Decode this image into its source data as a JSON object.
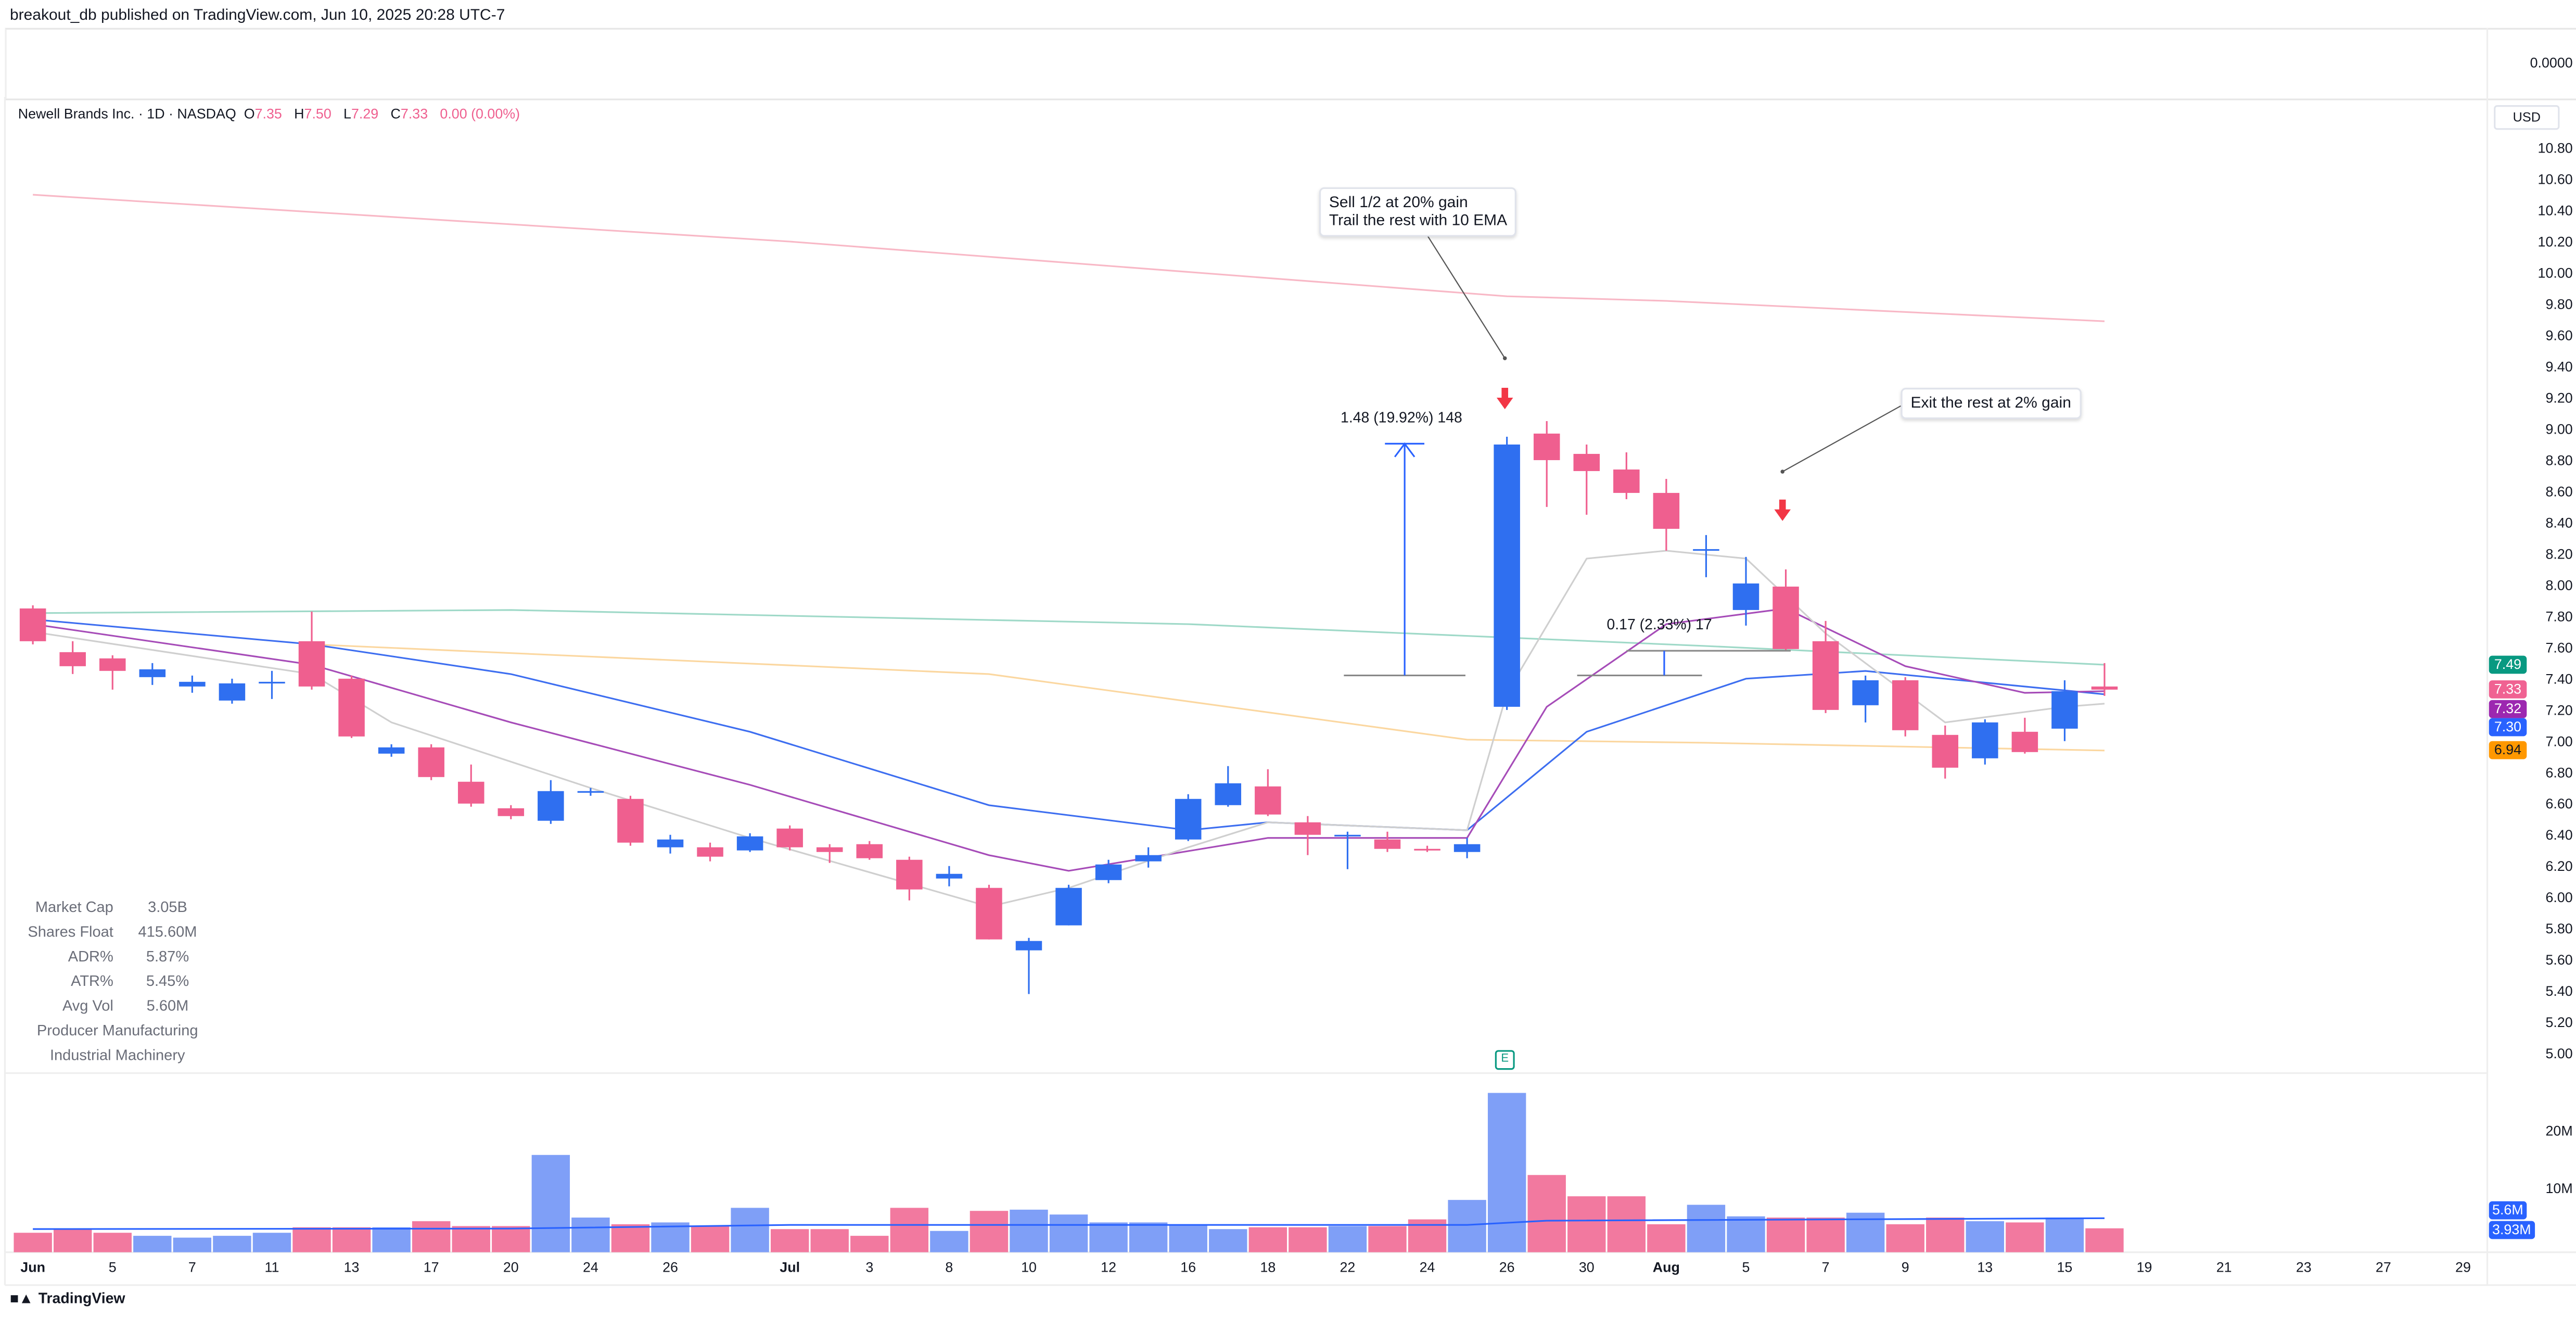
{
  "header": {
    "published": "breakout_db published on TradingView.com, Jun 10, 2025 20:28 UTC-7"
  },
  "top_pane": {
    "value": "0.0000"
  },
  "legend": {
    "symbol": "Newell Brands Inc. · 1D · NASDAQ",
    "o_label": "O",
    "o": "7.35",
    "h_label": "H",
    "h": "7.50",
    "l_label": "L",
    "l": "7.29",
    "c_label": "C",
    "c": "7.33",
    "change": "0.00 (0.00%)"
  },
  "currency": "USD",
  "stats": [
    {
      "label": "Market Cap",
      "value": "3.05B"
    },
    {
      "label": "Shares Float",
      "value": "415.60M"
    },
    {
      "label": "ADR%",
      "value": "5.87%"
    },
    {
      "label": "ATR%",
      "value": "5.45%"
    },
    {
      "label": "Avg Vol",
      "value": "5.60M"
    }
  ],
  "sector": "Producer Manufacturing",
  "industry": "Industrial Machinery",
  "annotations": {
    "note1_line1": "Sell 1/2 at 20% gain",
    "note1_line2": "Trail the rest with 10 EMA",
    "note2": "Exit the rest at 2% gain",
    "measure1": "1.48 (19.92%) 148",
    "measure2": "0.17 (2.33%) 17",
    "earnings": "E"
  },
  "branding": "TradingView",
  "colors": {
    "up": "#2f6ff0",
    "down": "#ef5f8f",
    "up_vol": "#7f9ff7",
    "down_vol": "#f2799f"
  },
  "chart_data": {
    "type": "candlestick",
    "price_axis": {
      "min": 5.0,
      "max": 10.8,
      "ticks": [
        "10.80",
        "10.60",
        "10.40",
        "10.20",
        "10.00",
        "9.80",
        "9.60",
        "9.40",
        "9.20",
        "9.00",
        "8.80",
        "8.60",
        "8.40",
        "8.20",
        "8.00",
        "7.80",
        "7.60",
        "7.40",
        "7.20",
        "7.00",
        "6.80",
        "6.60",
        "6.40",
        "6.20",
        "6.00",
        "5.80",
        "5.60",
        "5.40",
        "5.20",
        "5.00"
      ]
    },
    "volume_axis": {
      "ticks": [
        "20M",
        "10M"
      ]
    },
    "x_ticks": [
      {
        "label": "Jun",
        "date": "Jun 3"
      },
      {
        "label": "5",
        "date": "Jun 5"
      },
      {
        "label": "7",
        "date": "Jun 7"
      },
      {
        "label": "11",
        "date": "Jun 11"
      },
      {
        "label": "13",
        "date": "Jun 13"
      },
      {
        "label": "17",
        "date": "Jun 17"
      },
      {
        "label": "20",
        "date": "Jun 20"
      },
      {
        "label": "24",
        "date": "Jun 24"
      },
      {
        "label": "26",
        "date": "Jun 26"
      },
      {
        "label": "Jul",
        "date": "Jul 1"
      },
      {
        "label": "3",
        "date": "Jul 3"
      },
      {
        "label": "8",
        "date": "Jul 8"
      },
      {
        "label": "10",
        "date": "Jul 10"
      },
      {
        "label": "12",
        "date": "Jul 12"
      },
      {
        "label": "16",
        "date": "Jul 16"
      },
      {
        "label": "18",
        "date": "Jul 18"
      },
      {
        "label": "22",
        "date": "Jul 22"
      },
      {
        "label": "24",
        "date": "Jul 24"
      },
      {
        "label": "26",
        "date": "Jul 26"
      },
      {
        "label": "30",
        "date": "Jul 30"
      },
      {
        "label": "Aug",
        "date": "Aug 1"
      },
      {
        "label": "5",
        "date": "Aug 5"
      },
      {
        "label": "7",
        "date": "Aug 7"
      },
      {
        "label": "9",
        "date": "Aug 9"
      },
      {
        "label": "13",
        "date": "Aug 13"
      },
      {
        "label": "15",
        "date": "Aug 15"
      },
      {
        "label": "19",
        "date": "Aug 19"
      },
      {
        "label": "21",
        "date": "Aug 21"
      },
      {
        "label": "23",
        "date": "Aug 23"
      },
      {
        "label": "27",
        "date": "Aug 27"
      },
      {
        "label": "29",
        "date": "Aug 29"
      }
    ],
    "candles": [
      {
        "date": "Jun 3",
        "o": 7.85,
        "h": 7.87,
        "l": 7.62,
        "c": 7.64,
        "v": 3.2
      },
      {
        "date": "Jun 4",
        "o": 7.57,
        "h": 7.64,
        "l": 7.43,
        "c": 7.48,
        "v": 3.8
      },
      {
        "date": "Jun 5",
        "o": 7.53,
        "h": 7.55,
        "l": 7.33,
        "c": 7.45,
        "v": 3.2
      },
      {
        "date": "Jun 6",
        "o": 7.41,
        "h": 7.5,
        "l": 7.36,
        "c": 7.46,
        "v": 2.7
      },
      {
        "date": "Jun 7",
        "o": 7.35,
        "h": 7.42,
        "l": 7.31,
        "c": 7.38,
        "v": 2.4
      },
      {
        "date": "Jun 10",
        "o": 7.26,
        "h": 7.4,
        "l": 7.24,
        "c": 7.37,
        "v": 2.7
      },
      {
        "date": "Jun 11",
        "o": 7.37,
        "h": 7.45,
        "l": 7.27,
        "c": 7.38,
        "v": 3.2
      },
      {
        "date": "Jun 12",
        "o": 7.64,
        "h": 7.83,
        "l": 7.33,
        "c": 7.35,
        "v": 4.1
      },
      {
        "date": "Jun 13",
        "o": 7.4,
        "h": 7.42,
        "l": 7.02,
        "c": 7.03,
        "v": 4.1
      },
      {
        "date": "Jun 14",
        "o": 6.92,
        "h": 6.98,
        "l": 6.9,
        "c": 6.96,
        "v": 4.1
      },
      {
        "date": "Jun 17",
        "o": 6.96,
        "h": 6.98,
        "l": 6.75,
        "c": 6.77,
        "v": 5.1
      },
      {
        "date": "Jun 18",
        "o": 6.74,
        "h": 6.85,
        "l": 6.58,
        "c": 6.6,
        "v": 4.3
      },
      {
        "date": "Jun 20",
        "o": 6.57,
        "h": 6.59,
        "l": 6.5,
        "c": 6.52,
        "v": 4.3
      },
      {
        "date": "Jun 21",
        "o": 6.49,
        "h": 6.75,
        "l": 6.47,
        "c": 6.68,
        "v": 16.0
      },
      {
        "date": "Jun 24",
        "o": 6.67,
        "h": 6.7,
        "l": 6.65,
        "c": 6.68,
        "v": 5.7
      },
      {
        "date": "Jun 25",
        "o": 6.63,
        "h": 6.65,
        "l": 6.33,
        "c": 6.35,
        "v": 4.6
      },
      {
        "date": "Jun 26",
        "o": 6.32,
        "h": 6.4,
        "l": 6.28,
        "c": 6.37,
        "v": 4.9
      },
      {
        "date": "Jun 27",
        "o": 6.32,
        "h": 6.35,
        "l": 6.23,
        "c": 6.26,
        "v": 4.3
      },
      {
        "date": "Jun 28",
        "o": 6.3,
        "h": 6.41,
        "l": 6.29,
        "c": 6.39,
        "v": 7.3
      },
      {
        "date": "Jul 1",
        "o": 6.44,
        "h": 6.46,
        "l": 6.3,
        "c": 6.32,
        "v": 3.8
      },
      {
        "date": "Jul 2",
        "o": 6.32,
        "h": 6.34,
        "l": 6.22,
        "c": 6.29,
        "v": 3.8
      },
      {
        "date": "Jul 3",
        "o": 6.34,
        "h": 6.36,
        "l": 6.24,
        "c": 6.25,
        "v": 2.7
      },
      {
        "date": "Jul 5",
        "o": 6.24,
        "h": 6.26,
        "l": 5.98,
        "c": 6.05,
        "v": 7.3
      },
      {
        "date": "Jul 8",
        "o": 6.12,
        "h": 6.2,
        "l": 6.07,
        "c": 6.15,
        "v": 3.5
      },
      {
        "date": "Jul 9",
        "o": 6.06,
        "h": 6.08,
        "l": 5.73,
        "c": 5.73,
        "v": 6.8
      },
      {
        "date": "Jul 10",
        "o": 5.66,
        "h": 5.74,
        "l": 5.38,
        "c": 5.72,
        "v": 7.0
      },
      {
        "date": "Jul 11",
        "o": 5.82,
        "h": 6.08,
        "l": 5.82,
        "c": 6.06,
        "v": 6.2
      },
      {
        "date": "Jul 12",
        "o": 6.11,
        "h": 6.24,
        "l": 6.09,
        "c": 6.21,
        "v": 4.9
      },
      {
        "date": "Jul 15",
        "o": 6.23,
        "h": 6.32,
        "l": 6.19,
        "c": 6.27,
        "v": 4.9
      },
      {
        "date": "Jul 16",
        "o": 6.37,
        "h": 6.66,
        "l": 6.36,
        "c": 6.63,
        "v": 4.6
      },
      {
        "date": "Jul 17",
        "o": 6.59,
        "h": 6.84,
        "l": 6.58,
        "c": 6.73,
        "v": 3.8
      },
      {
        "date": "Jul 18",
        "o": 6.71,
        "h": 6.82,
        "l": 6.52,
        "c": 6.53,
        "v": 4.1
      },
      {
        "date": "Jul 19",
        "o": 6.48,
        "h": 6.52,
        "l": 6.27,
        "c": 6.4,
        "v": 4.1
      },
      {
        "date": "Jul 22",
        "o": 6.39,
        "h": 6.42,
        "l": 6.18,
        "c": 6.4,
        "v": 4.3
      },
      {
        "date": "Jul 23",
        "o": 6.37,
        "h": 6.42,
        "l": 6.29,
        "c": 6.31,
        "v": 4.3
      },
      {
        "date": "Jul 24",
        "o": 6.31,
        "h": 6.33,
        "l": 6.29,
        "c": 6.3,
        "v": 5.4
      },
      {
        "date": "Jul 25",
        "o": 6.29,
        "h": 6.38,
        "l": 6.25,
        "c": 6.34,
        "v": 8.6
      },
      {
        "date": "Jul 26",
        "o": 7.22,
        "h": 8.95,
        "l": 7.2,
        "c": 8.9,
        "v": 26.2
      },
      {
        "date": "Jul 29",
        "o": 8.97,
        "h": 9.05,
        "l": 8.5,
        "c": 8.8,
        "v": 12.7
      },
      {
        "date": "Jul 30",
        "o": 8.84,
        "h": 8.9,
        "l": 8.45,
        "c": 8.73,
        "v": 9.2
      },
      {
        "date": "Jul 31",
        "o": 8.74,
        "h": 8.85,
        "l": 8.55,
        "c": 8.59,
        "v": 9.2
      },
      {
        "date": "Aug 1",
        "o": 8.59,
        "h": 8.68,
        "l": 8.22,
        "c": 8.36,
        "v": 4.6
      },
      {
        "date": "Aug 2",
        "o": 8.22,
        "h": 8.32,
        "l": 8.05,
        "c": 8.23,
        "v": 7.8
      },
      {
        "date": "Aug 5",
        "o": 7.84,
        "h": 8.18,
        "l": 7.74,
        "c": 8.01,
        "v": 5.9
      },
      {
        "date": "Aug 6",
        "o": 7.99,
        "h": 8.1,
        "l": 7.58,
        "c": 7.59,
        "v": 5.7
      },
      {
        "date": "Aug 7",
        "o": 7.64,
        "h": 7.77,
        "l": 7.18,
        "c": 7.2,
        "v": 5.7
      },
      {
        "date": "Aug 8",
        "o": 7.23,
        "h": 7.42,
        "l": 7.12,
        "c": 7.39,
        "v": 6.5
      },
      {
        "date": "Aug 9",
        "o": 7.39,
        "h": 7.41,
        "l": 7.03,
        "c": 7.07,
        "v": 4.6
      },
      {
        "date": "Aug 12",
        "o": 7.04,
        "h": 7.1,
        "l": 6.76,
        "c": 6.83,
        "v": 5.7
      },
      {
        "date": "Aug 13",
        "o": 6.89,
        "h": 7.14,
        "l": 6.85,
        "c": 7.12,
        "v": 5.1
      },
      {
        "date": "Aug 14",
        "o": 7.06,
        "h": 7.15,
        "l": 6.92,
        "c": 6.93,
        "v": 4.9
      },
      {
        "date": "Aug 15",
        "o": 7.08,
        "h": 7.39,
        "l": 7.0,
        "c": 7.32,
        "v": 5.7
      },
      {
        "date": "Aug 16",
        "o": 7.35,
        "h": 7.5,
        "l": 7.29,
        "c": 7.33,
        "v": 3.93
      }
    ],
    "volume_ma": {
      "last": "5.6M",
      "color": "#2962ff",
      "points": [
        [
          "Jun 3",
          3.8
        ],
        [
          "Jun 20",
          3.9
        ],
        [
          "Jul 1",
          4.5
        ],
        [
          "Jul 25",
          4.5
        ],
        [
          "Jul 29",
          5.2
        ],
        [
          "Aug 16",
          5.6
        ]
      ]
    },
    "last_volume": "3.93M",
    "moving_averages": [
      {
        "color": "#f8b8c6",
        "last": null,
        "points": [
          [
            "Jun 3",
            10.5
          ],
          [
            "Jul 1",
            10.2
          ],
          [
            "Jul 26",
            9.85
          ],
          [
            "Aug 1",
            9.82
          ],
          [
            "Aug 16",
            9.69
          ]
        ]
      },
      {
        "color": "#9fd9c8",
        "last": "7.49",
        "badge": "#089981",
        "points": [
          [
            "Jun 3",
            7.82
          ],
          [
            "Jun 20",
            7.84
          ],
          [
            "Jul 16",
            7.75
          ],
          [
            "Aug 2",
            7.61
          ],
          [
            "Aug 16",
            7.49
          ]
        ]
      },
      {
        "color": "#fbd7a0",
        "last": "6.94",
        "badge": "#ff9800",
        "points": [
          [
            "Jun 12",
            7.62
          ],
          [
            "Jul 9",
            7.43
          ],
          [
            "Jul 25",
            7.01
          ],
          [
            "Aug 2",
            6.99
          ],
          [
            "Aug 16",
            6.94
          ]
        ]
      },
      {
        "color": "#3d6ef0",
        "last": "7.30",
        "badge": "#2962ff",
        "points": [
          [
            "Jun 3",
            7.78
          ],
          [
            "Jun 12",
            7.62
          ],
          [
            "Jun 20",
            7.43
          ],
          [
            "Jun 28",
            7.06
          ],
          [
            "Jul 9",
            6.59
          ],
          [
            "Jul 16",
            6.43
          ],
          [
            "Jul 18",
            6.48
          ],
          [
            "Jul 25",
            6.43
          ],
          [
            "Jul 30",
            7.06
          ],
          [
            "Aug 5",
            7.4
          ],
          [
            "Aug 8",
            7.45
          ],
          [
            "Aug 16",
            7.3
          ]
        ]
      },
      {
        "color": "#a64cb8",
        "last": "7.32",
        "badge": "#9c27b0",
        "points": [
          [
            "Jun 3",
            7.75
          ],
          [
            "Jun 12",
            7.49
          ],
          [
            "Jun 20",
            7.12
          ],
          [
            "Jun 28",
            6.72
          ],
          [
            "Jul 9",
            6.27
          ],
          [
            "Jul 11",
            6.17
          ],
          [
            "Jul 18",
            6.38
          ],
          [
            "Jul 25",
            6.38
          ],
          [
            "Jul 29",
            7.22
          ],
          [
            "Aug 1",
            7.75
          ],
          [
            "Aug 6",
            7.85
          ],
          [
            "Aug 9",
            7.48
          ],
          [
            "Aug 14",
            7.31
          ],
          [
            "Aug 16",
            7.32
          ]
        ]
      },
      {
        "color": "#cfcfcf",
        "last": null,
        "points": [
          [
            "Jun 3",
            7.7
          ],
          [
            "Jun 12",
            7.43
          ],
          [
            "Jun 14",
            7.12
          ],
          [
            "Jun 24",
            6.7
          ],
          [
            "Jun 28",
            6.38
          ],
          [
            "Jul 9",
            5.94
          ],
          [
            "Jul 11",
            6.06
          ],
          [
            "Jul 16",
            6.32
          ],
          [
            "Jul 18",
            6.48
          ],
          [
            "Jul 25",
            6.43
          ],
          [
            "Jul 26",
            7.31
          ],
          [
            "Jul 30",
            8.17
          ],
          [
            "Aug 1",
            8.22
          ],
          [
            "Aug 5",
            8.17
          ],
          [
            "Aug 7",
            7.69
          ],
          [
            "Aug 12",
            7.12
          ],
          [
            "Aug 15",
            7.22
          ],
          [
            "Aug 16",
            7.24
          ]
        ]
      }
    ],
    "close_badge": {
      "value": "7.33",
      "color": "#f06292"
    }
  }
}
